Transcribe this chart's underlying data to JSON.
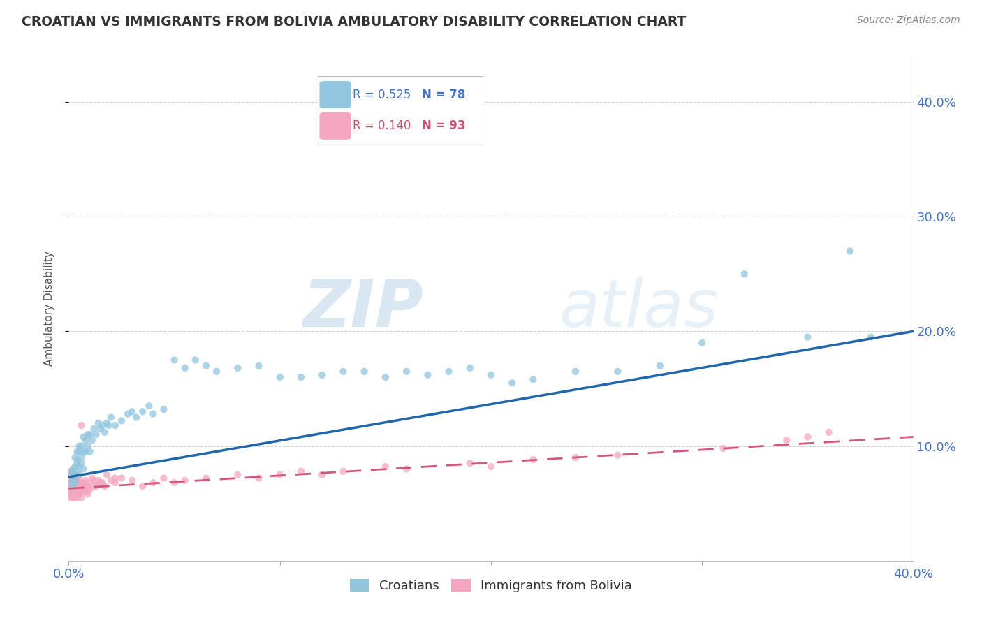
{
  "title": "CROATIAN VS IMMIGRANTS FROM BOLIVIA AMBULATORY DISABILITY CORRELATION CHART",
  "source": "Source: ZipAtlas.com",
  "ylabel": "Ambulatory Disability",
  "xlim": [
    0.0,
    0.4
  ],
  "ylim": [
    0.0,
    0.44
  ],
  "xtick_labels": [
    "0.0%",
    "",
    "",
    "",
    "40.0%"
  ],
  "xtick_vals": [
    0.0,
    0.1,
    0.2,
    0.3,
    0.4
  ],
  "ytick_labels": [
    "10.0%",
    "20.0%",
    "30.0%",
    "40.0%"
  ],
  "ytick_vals": [
    0.1,
    0.2,
    0.3,
    0.4
  ],
  "legend_r_croatian": "R = 0.525",
  "legend_n_croatian": "N = 78",
  "legend_r_bolivia": "R = 0.140",
  "legend_n_bolivia": "N = 93",
  "croatian_color": "#92c5de",
  "croatia_edge_color": "#92c5de",
  "bolivia_color": "#f4a6c0",
  "bolivia_edge_color": "#f4a6c0",
  "croatian_line_color": "#2166ac",
  "bolivia_line_color": "#d6567a",
  "watermark_color": "#d0e4f0",
  "background_color": "#ffffff",
  "grid_color": "#cccccc",
  "title_color": "#333333",
  "tick_color": "#4472c4",
  "legend_text_croatian": "#4472c4",
  "legend_text_bolivia": "#d05070",
  "croatian_x": [
    0.001,
    0.001,
    0.002,
    0.002,
    0.002,
    0.002,
    0.003,
    0.003,
    0.003,
    0.003,
    0.003,
    0.004,
    0.004,
    0.004,
    0.004,
    0.005,
    0.005,
    0.005,
    0.005,
    0.006,
    0.006,
    0.006,
    0.007,
    0.007,
    0.007,
    0.008,
    0.008,
    0.009,
    0.009,
    0.01,
    0.01,
    0.011,
    0.012,
    0.013,
    0.014,
    0.015,
    0.016,
    0.017,
    0.018,
    0.019,
    0.02,
    0.022,
    0.025,
    0.028,
    0.03,
    0.032,
    0.035,
    0.038,
    0.04,
    0.045,
    0.05,
    0.055,
    0.06,
    0.065,
    0.07,
    0.08,
    0.09,
    0.1,
    0.11,
    0.12,
    0.13,
    0.14,
    0.15,
    0.16,
    0.17,
    0.18,
    0.19,
    0.2,
    0.21,
    0.22,
    0.24,
    0.26,
    0.28,
    0.3,
    0.32,
    0.35,
    0.37,
    0.38
  ],
  "croatian_y": [
    0.075,
    0.068,
    0.072,
    0.065,
    0.08,
    0.078,
    0.068,
    0.082,
    0.075,
    0.07,
    0.09,
    0.085,
    0.078,
    0.095,
    0.088,
    0.082,
    0.095,
    0.075,
    0.1,
    0.09,
    0.085,
    0.1,
    0.095,
    0.108,
    0.08,
    0.095,
    0.105,
    0.1,
    0.11,
    0.095,
    0.11,
    0.105,
    0.115,
    0.11,
    0.12,
    0.115,
    0.118,
    0.112,
    0.12,
    0.118,
    0.125,
    0.118,
    0.122,
    0.128,
    0.13,
    0.125,
    0.13,
    0.135,
    0.128,
    0.132,
    0.175,
    0.168,
    0.175,
    0.17,
    0.165,
    0.168,
    0.17,
    0.16,
    0.16,
    0.162,
    0.165,
    0.165,
    0.16,
    0.165,
    0.162,
    0.165,
    0.168,
    0.162,
    0.155,
    0.158,
    0.165,
    0.165,
    0.17,
    0.19,
    0.25,
    0.195,
    0.27,
    0.195
  ],
  "bolivia_x": [
    0.001,
    0.001,
    0.001,
    0.001,
    0.001,
    0.001,
    0.001,
    0.001,
    0.001,
    0.002,
    0.002,
    0.002,
    0.002,
    0.002,
    0.002,
    0.002,
    0.002,
    0.002,
    0.002,
    0.002,
    0.002,
    0.003,
    0.003,
    0.003,
    0.003,
    0.003,
    0.003,
    0.003,
    0.003,
    0.004,
    0.004,
    0.004,
    0.004,
    0.004,
    0.004,
    0.005,
    0.005,
    0.005,
    0.005,
    0.005,
    0.006,
    0.006,
    0.006,
    0.007,
    0.007,
    0.008,
    0.008,
    0.009,
    0.009,
    0.01,
    0.012,
    0.013,
    0.015,
    0.017,
    0.02,
    0.022,
    0.025,
    0.03,
    0.035,
    0.04,
    0.045,
    0.05,
    0.055,
    0.065,
    0.08,
    0.09,
    0.1,
    0.11,
    0.12,
    0.13,
    0.15,
    0.16,
    0.19,
    0.2,
    0.22,
    0.24,
    0.26,
    0.31,
    0.34,
    0.35,
    0.36,
    0.005,
    0.006,
    0.007,
    0.008,
    0.009,
    0.01,
    0.011,
    0.012,
    0.014,
    0.016,
    0.018,
    0.022
  ],
  "bolivia_y": [
    0.062,
    0.068,
    0.055,
    0.072,
    0.058,
    0.078,
    0.065,
    0.06,
    0.075,
    0.055,
    0.068,
    0.06,
    0.072,
    0.058,
    0.065,
    0.075,
    0.062,
    0.068,
    0.055,
    0.072,
    0.06,
    0.065,
    0.058,
    0.07,
    0.062,
    0.068,
    0.055,
    0.072,
    0.06,
    0.058,
    0.065,
    0.062,
    0.068,
    0.055,
    0.07,
    0.058,
    0.065,
    0.062,
    0.068,
    0.072,
    0.06,
    0.068,
    0.055,
    0.065,
    0.062,
    0.06,
    0.068,
    0.058,
    0.065,
    0.062,
    0.07,
    0.065,
    0.068,
    0.065,
    0.07,
    0.068,
    0.072,
    0.07,
    0.065,
    0.068,
    0.072,
    0.068,
    0.07,
    0.072,
    0.075,
    0.072,
    0.075,
    0.078,
    0.075,
    0.078,
    0.082,
    0.08,
    0.085,
    0.082,
    0.088,
    0.09,
    0.092,
    0.098,
    0.105,
    0.108,
    0.112,
    0.06,
    0.118,
    0.065,
    0.07,
    0.062,
    0.068,
    0.072,
    0.065,
    0.07,
    0.068,
    0.075,
    0.072
  ],
  "croatian_trend_x": [
    0.0,
    0.4
  ],
  "croatian_trend_y": [
    0.073,
    0.2
  ],
  "bolivia_trend_x": [
    0.0,
    0.4
  ],
  "bolivia_trend_y": [
    0.063,
    0.108
  ]
}
